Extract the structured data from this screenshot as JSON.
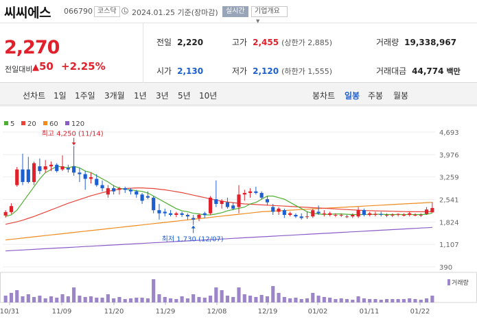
{
  "header": {
    "stock_name": "씨씨에스",
    "stock_code": "066790",
    "market": "코스닥",
    "date": "2024.01.25 기준(장마감)",
    "live_label": "실시간",
    "company_info_label": "기업개요"
  },
  "quote": {
    "price": "2,270",
    "change_label": "전일대비",
    "change_value": "50",
    "change_percent": "+2.25%",
    "prev_close_label": "전일",
    "prev_close": "2,220",
    "high_label": "고가",
    "high": "2,455",
    "upper_limit": "(상한가 2,885)",
    "volume_label": "거래량",
    "volume": "19,338,967",
    "open_label": "시가",
    "open": "2,130",
    "low_label": "저가",
    "low": "2,120",
    "lower_limit": "(하한가 1,555)",
    "amount_label": "거래대금",
    "amount": "44,774",
    "amount_unit": "백만",
    "up_color": "#e0202b",
    "down_color": "#1c5fd1"
  },
  "tabs": {
    "line_chart_label": "선차트",
    "line_periods": [
      "1일",
      "1주일",
      "3개월",
      "1년",
      "3년",
      "5년",
      "10년"
    ],
    "candle_chart_label": "봉차트",
    "candle_periods": [
      "일봉",
      "주봉",
      "월봉"
    ],
    "active_candle": "일봉"
  },
  "chart_data": {
    "type": "candlestick",
    "legend": [
      {
        "name": "5",
        "color": "#4caf2f"
      },
      {
        "name": "20",
        "color": "#e8443a"
      },
      {
        "name": "60",
        "color": "#f08a1c"
      },
      {
        "name": "120",
        "color": "#8a5bc7"
      }
    ],
    "y_ticks": [
      "4,693",
      "3,976",
      "3,259",
      "2,541",
      "1,824",
      "1,107",
      "390"
    ],
    "ylim": [
      390,
      4693
    ],
    "x_ticks": [
      "10/31",
      "11/09",
      "11/20",
      "11/29",
      "12/08",
      "12/19",
      "01/02",
      "01/11",
      "01/22"
    ],
    "max_annotation": "최고 4,250 (11/14)",
    "min_annotation": "최저 1,730 (12/07)",
    "volume_label": "거래량",
    "candles": [
      {
        "o": 2030,
        "h": 2200,
        "l": 1960,
        "c": 2140
      },
      {
        "o": 2140,
        "h": 2420,
        "l": 2080,
        "c": 2330
      },
      {
        "o": 3000,
        "h": 3580,
        "l": 2950,
        "c": 3500
      },
      {
        "o": 3500,
        "h": 4000,
        "l": 3000,
        "c": 3100
      },
      {
        "o": 3500,
        "h": 3900,
        "l": 3050,
        "c": 3100
      },
      {
        "o": 3100,
        "h": 3750,
        "l": 3000,
        "c": 3700
      },
      {
        "o": 3600,
        "h": 3850,
        "l": 3350,
        "c": 3450
      },
      {
        "o": 3500,
        "h": 3800,
        "l": 3400,
        "c": 3600
      },
      {
        "o": 3600,
        "h": 3750,
        "l": 3450,
        "c": 3650
      },
      {
        "o": 3650,
        "h": 3700,
        "l": 3400,
        "c": 3450
      },
      {
        "o": 3500,
        "h": 3950,
        "l": 3450,
        "c": 3600
      },
      {
        "o": 3550,
        "h": 3650,
        "l": 3400,
        "c": 3500
      },
      {
        "o": 3600,
        "h": 4250,
        "l": 3300,
        "c": 3400
      },
      {
        "o": 3400,
        "h": 3550,
        "l": 3100,
        "c": 3350
      },
      {
        "o": 3350,
        "h": 3450,
        "l": 2850,
        "c": 3200
      },
      {
        "o": 3200,
        "h": 3400,
        "l": 3050,
        "c": 3250
      },
      {
        "o": 3200,
        "h": 3350,
        "l": 2950,
        "c": 3000
      },
      {
        "o": 3000,
        "h": 3150,
        "l": 2800,
        "c": 2900
      },
      {
        "o": 2700,
        "h": 3000,
        "l": 2600,
        "c": 2900
      },
      {
        "o": 2900,
        "h": 3000,
        "l": 2700,
        "c": 2800
      },
      {
        "o": 2850,
        "h": 2950,
        "l": 2700,
        "c": 2900
      },
      {
        "o": 2900,
        "h": 2950,
        "l": 2750,
        "c": 2850
      },
      {
        "o": 2850,
        "h": 2900,
        "l": 2700,
        "c": 2800
      },
      {
        "o": 2800,
        "h": 2850,
        "l": 2600,
        "c": 2700
      },
      {
        "o": 2700,
        "h": 2750,
        "l": 2400,
        "c": 2500
      },
      {
        "o": 2650,
        "h": 2800,
        "l": 2550,
        "c": 2600
      },
      {
        "o": 2600,
        "h": 2650,
        "l": 2100,
        "c": 2200
      },
      {
        "o": 2200,
        "h": 2400,
        "l": 1900,
        "c": 2100
      },
      {
        "o": 2150,
        "h": 2250,
        "l": 2000,
        "c": 2100
      },
      {
        "o": 2100,
        "h": 2200,
        "l": 2000,
        "c": 2050
      },
      {
        "o": 2050,
        "h": 2150,
        "l": 1980,
        "c": 2100
      },
      {
        "o": 2100,
        "h": 2150,
        "l": 1980,
        "c": 2050
      },
      {
        "o": 2050,
        "h": 2100,
        "l": 1900,
        "c": 2000
      },
      {
        "o": 1950,
        "h": 2050,
        "l": 1730,
        "c": 1900
      },
      {
        "o": 1950,
        "h": 2100,
        "l": 1850,
        "c": 2050
      },
      {
        "o": 2100,
        "h": 2150,
        "l": 1950,
        "c": 2050
      },
      {
        "o": 2100,
        "h": 2650,
        "l": 2050,
        "c": 2600
      },
      {
        "o": 2550,
        "h": 3150,
        "l": 2300,
        "c": 2400
      },
      {
        "o": 2400,
        "h": 2550,
        "l": 2250,
        "c": 2500
      },
      {
        "o": 2450,
        "h": 2600,
        "l": 2250,
        "c": 2300
      },
      {
        "o": 2350,
        "h": 2450,
        "l": 2200,
        "c": 2250
      },
      {
        "o": 2300,
        "h": 3000,
        "l": 2100,
        "c": 2700
      },
      {
        "o": 2700,
        "h": 2850,
        "l": 2500,
        "c": 2750
      },
      {
        "o": 2750,
        "h": 2900,
        "l": 2600,
        "c": 2800
      },
      {
        "o": 2800,
        "h": 2950,
        "l": 2700,
        "c": 2750
      },
      {
        "o": 2750,
        "h": 2800,
        "l": 2550,
        "c": 2600
      },
      {
        "o": 2550,
        "h": 2650,
        "l": 2350,
        "c": 2450
      },
      {
        "o": 2300,
        "h": 2400,
        "l": 2050,
        "c": 2150
      },
      {
        "o": 2150,
        "h": 2300,
        "l": 2050,
        "c": 2250
      },
      {
        "o": 2200,
        "h": 2250,
        "l": 1950,
        "c": 2050
      },
      {
        "o": 2050,
        "h": 2150,
        "l": 2000,
        "c": 2100
      },
      {
        "o": 2050,
        "h": 2100,
        "l": 1950,
        "c": 2000
      },
      {
        "o": 2000,
        "h": 2100,
        "l": 1900,
        "c": 1950
      },
      {
        "o": 2000,
        "h": 2150,
        "l": 1920,
        "c": 2000
      },
      {
        "o": 2000,
        "h": 2250,
        "l": 1950,
        "c": 2200
      },
      {
        "o": 2150,
        "h": 2350,
        "l": 2050,
        "c": 2100
      },
      {
        "o": 2100,
        "h": 2200,
        "l": 2000,
        "c": 2100
      },
      {
        "o": 2050,
        "h": 2150,
        "l": 2000,
        "c": 2100
      },
      {
        "o": 2050,
        "h": 2100,
        "l": 1980,
        "c": 2050
      },
      {
        "o": 2050,
        "h": 2100,
        "l": 1980,
        "c": 2050
      },
      {
        "o": 2000,
        "h": 2050,
        "l": 1950,
        "c": 2000
      },
      {
        "o": 2000,
        "h": 2100,
        "l": 1950,
        "c": 2050
      },
      {
        "o": 2000,
        "h": 2300,
        "l": 1950,
        "c": 2200
      },
      {
        "o": 2200,
        "h": 2250,
        "l": 2000,
        "c": 2050
      },
      {
        "o": 2050,
        "h": 2150,
        "l": 2000,
        "c": 2100
      },
      {
        "o": 2050,
        "h": 2150,
        "l": 2000,
        "c": 2080
      },
      {
        "o": 2080,
        "h": 2150,
        "l": 2000,
        "c": 2050
      },
      {
        "o": 2050,
        "h": 2100,
        "l": 1980,
        "c": 2050
      },
      {
        "o": 2030,
        "h": 2100,
        "l": 1980,
        "c": 2060
      },
      {
        "o": 2060,
        "h": 2100,
        "l": 2000,
        "c": 2080
      },
      {
        "o": 2050,
        "h": 2100,
        "l": 2000,
        "c": 2050
      },
      {
        "o": 2050,
        "h": 2150,
        "l": 2000,
        "c": 2100
      },
      {
        "o": 2050,
        "h": 2100,
        "l": 2000,
        "c": 2050
      },
      {
        "o": 2030,
        "h": 2100,
        "l": 1980,
        "c": 2050
      },
      {
        "o": 2080,
        "h": 2300,
        "l": 2050,
        "c": 2220
      },
      {
        "o": 2130,
        "h": 2455,
        "l": 2120,
        "c": 2270
      }
    ],
    "ma5": [
      2000,
      2050,
      2200,
      2450,
      2700,
      2950,
      3200,
      3400,
      3500,
      3600,
      3580,
      3550,
      3600,
      3550,
      3450,
      3400,
      3300,
      3200,
      3100,
      2980,
      2900,
      2870,
      2850,
      2820,
      2800,
      2750,
      2650,
      2550,
      2450,
      2350,
      2250,
      2180,
      2150,
      2100,
      2080,
      2050,
      2050,
      2080,
      2120,
      2180,
      2220,
      2260,
      2300,
      2400,
      2450,
      2550,
      2650,
      2650,
      2600,
      2550,
      2450,
      2350,
      2250,
      2150,
      2100,
      2080,
      2060,
      2070,
      2080,
      2080,
      2070,
      2060,
      2060,
      2060,
      2060,
      2070,
      2070,
      2060,
      2060,
      2060,
      2060,
      2060,
      2060,
      2060,
      2070,
      2110
    ],
    "ma20": [
      1750,
      1790,
      1830,
      1880,
      1940,
      2000,
      2070,
      2140,
      2210,
      2280,
      2350,
      2420,
      2480,
      2540,
      2600,
      2660,
      2710,
      2760,
      2800,
      2840,
      2870,
      2890,
      2900,
      2910,
      2910,
      2900,
      2890,
      2870,
      2850,
      2820,
      2790,
      2760,
      2720,
      2680,
      2640,
      2600,
      2560,
      2520,
      2490,
      2460,
      2440,
      2420,
      2400,
      2390,
      2380,
      2370,
      2360,
      2350,
      2340,
      2330,
      2320,
      2310,
      2300,
      2290,
      2280,
      2270,
      2260,
      2250,
      2240,
      2230,
      2220,
      2210,
      2200,
      2190,
      2185,
      2180,
      2175,
      2170,
      2165,
      2160,
      2155,
      2150,
      2150,
      2150,
      2150,
      2160
    ],
    "ma60": [
      1250,
      1270,
      1290,
      1310,
      1330,
      1350,
      1370,
      1390,
      1410,
      1430,
      1450,
      1470,
      1490,
      1510,
      1530,
      1550,
      1570,
      1590,
      1610,
      1630,
      1650,
      1670,
      1690,
      1710,
      1730,
      1750,
      1770,
      1790,
      1810,
      1830,
      1850,
      1870,
      1890,
      1910,
      1930,
      1950,
      1970,
      1990,
      2010,
      2030,
      2050,
      2070,
      2090,
      2110,
      2130,
      2150,
      2160,
      2170,
      2180,
      2190,
      2200,
      2210,
      2220,
      2230,
      2240,
      2250,
      2260,
      2270,
      2280,
      2290,
      2300,
      2310,
      2320,
      2330,
      2340,
      2350,
      2360,
      2370,
      2380,
      2390,
      2400,
      2410,
      2420,
      2430,
      2440,
      2450
    ],
    "ma120": [
      900,
      910,
      920,
      930,
      940,
      950,
      960,
      970,
      980,
      990,
      1000,
      1010,
      1020,
      1030,
      1040,
      1050,
      1060,
      1070,
      1080,
      1090,
      1100,
      1110,
      1120,
      1130,
      1140,
      1150,
      1160,
      1170,
      1180,
      1190,
      1200,
      1210,
      1220,
      1230,
      1240,
      1250,
      1260,
      1270,
      1280,
      1290,
      1300,
      1310,
      1320,
      1330,
      1340,
      1350,
      1360,
      1370,
      1380,
      1390,
      1400,
      1410,
      1420,
      1430,
      1440,
      1450,
      1460,
      1470,
      1480,
      1490,
      1500,
      1510,
      1520,
      1530,
      1540,
      1550,
      1560,
      1570,
      1580,
      1590,
      1600,
      1610,
      1620,
      1630,
      1640,
      1650
    ],
    "volume": [
      10,
      14,
      18,
      9,
      12,
      8,
      10,
      6,
      9,
      7,
      12,
      9,
      22,
      10,
      8,
      9,
      7,
      7,
      12,
      6,
      8,
      5,
      6,
      7,
      7,
      6,
      34,
      12,
      8,
      6,
      5,
      9,
      6,
      12,
      8,
      7,
      10,
      22,
      18,
      10,
      8,
      22,
      12,
      10,
      8,
      11,
      9,
      24,
      14,
      8,
      6,
      7,
      5,
      6,
      14,
      10,
      8,
      7,
      5,
      6,
      5,
      4,
      9,
      6,
      5,
      5,
      4,
      5,
      5,
      5,
      5,
      6,
      5,
      4,
      6,
      10
    ]
  }
}
